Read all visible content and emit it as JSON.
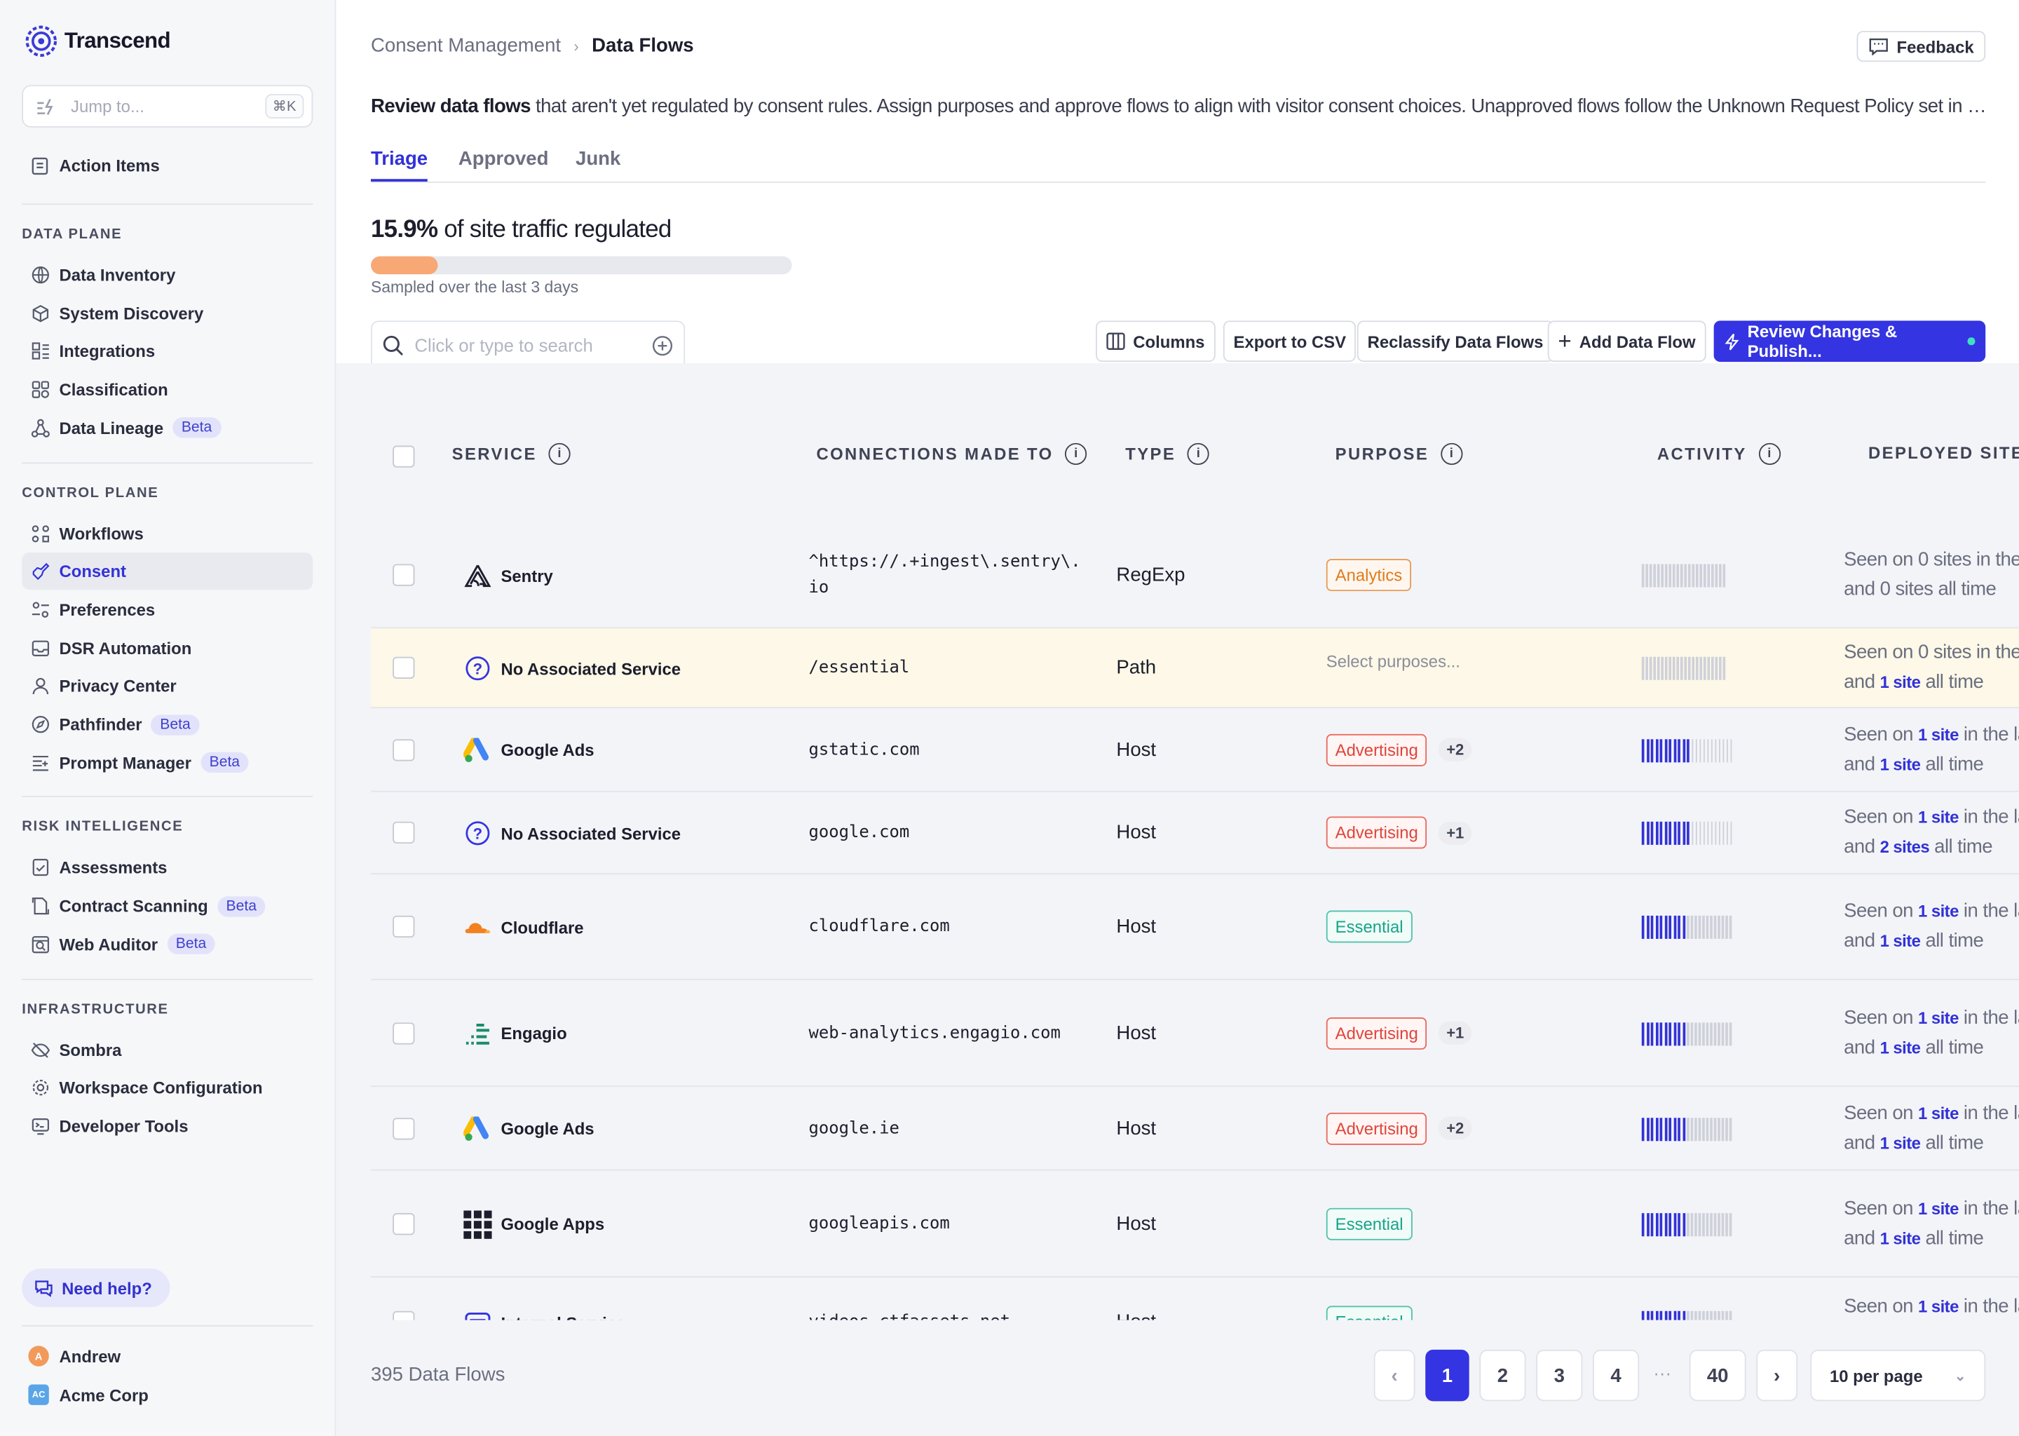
{
  "app": {
    "name": "Transcend"
  },
  "sidebar": {
    "jump_placeholder": "Jump to...",
    "jump_shortcut": "⌘K",
    "action_items": "Action Items",
    "sections": [
      {
        "title": "DATA PLANE",
        "items": [
          {
            "label": "Data Inventory",
            "icon": "globe-icon"
          },
          {
            "label": "System Discovery",
            "icon": "cube-icon"
          },
          {
            "label": "Integrations",
            "icon": "integrations-icon"
          },
          {
            "label": "Classification",
            "icon": "classification-icon"
          },
          {
            "label": "Data Lineage",
            "icon": "lineage-icon",
            "badge": "Beta"
          }
        ]
      },
      {
        "title": "CONTROL PLANE",
        "items": [
          {
            "label": "Workflows",
            "icon": "workflows-icon"
          },
          {
            "label": "Consent",
            "icon": "consent-icon",
            "active": true
          },
          {
            "label": "Preferences",
            "icon": "preferences-icon"
          },
          {
            "label": "DSR Automation",
            "icon": "inbox-icon"
          },
          {
            "label": "Privacy Center",
            "icon": "user-icon"
          },
          {
            "label": "Pathfinder",
            "icon": "compass-icon",
            "badge": "Beta"
          },
          {
            "label": "Prompt Manager",
            "icon": "prompt-icon",
            "badge": "Beta"
          }
        ]
      },
      {
        "title": "RISK INTELLIGENCE",
        "items": [
          {
            "label": "Assessments",
            "icon": "assessments-icon"
          },
          {
            "label": "Contract Scanning",
            "icon": "contract-icon",
            "badge": "Beta"
          },
          {
            "label": "Web Auditor",
            "icon": "web-auditor-icon",
            "badge": "Beta"
          }
        ]
      },
      {
        "title": "INFRASTRUCTURE",
        "items": [
          {
            "label": "Sombra",
            "icon": "eye-off-icon"
          },
          {
            "label": "Workspace Configuration",
            "icon": "gear-icon"
          },
          {
            "label": "Developer Tools",
            "icon": "terminal-icon"
          }
        ]
      }
    ],
    "help": "Need help?",
    "user_name": "Andrew",
    "user_initial": "A",
    "org_name": "Acme Corp",
    "org_initials": "AC"
  },
  "header": {
    "breadcrumb_parent": "Consent Management",
    "breadcrumb_current": "Data Flows",
    "feedback": "Feedback"
  },
  "description": {
    "bold": "Review data flows",
    "rest": " that aren't yet regulated by consent rules. Assign purposes and approve flows to align with visitor consent choices. Unapproved flows follow the Unknown Request Policy set in Dev..."
  },
  "tabs": [
    "Triage",
    "Approved",
    "Junk"
  ],
  "active_tab": "Triage",
  "kpi": {
    "value": "15.9%",
    "label": " of site traffic regulated",
    "progress": 0.159,
    "sampled": "Sampled over the last 3 days"
  },
  "toolbar": {
    "search_placeholder": "Click or type to search",
    "columns": "Columns",
    "export": "Export to CSV",
    "reclassify": "Reclassify Data Flows",
    "add": "Add Data Flow",
    "review": "Review Changes & Publish..."
  },
  "table": {
    "headers": {
      "service": "SERVICE",
      "connections": "CONNECTIONS MADE TO",
      "type": "TYPE",
      "purpose": "PURPOSE",
      "activity": "ACTIVITY",
      "deployed": "DEPLOYED SITES"
    },
    "rows": [
      {
        "service": "Sentry",
        "logo": "sentry-icon",
        "connection": "^https://.+ingest\\.sentry\\.io",
        "connection_wrap": [
          "^https://.+ingest\\.sentry\\.",
          "io"
        ],
        "type": "RegExp",
        "purpose": "Analytics",
        "purpose_kind": "an",
        "extra": "",
        "activity": 0,
        "dep_line1_pre": "Seen on 0 sites in the",
        "dep_line1_link": "",
        "dep_line1_post": "",
        "dep_line2_pre": "and 0 sites all time",
        "dep_line2_link": "",
        "dep_line2_post": ""
      },
      {
        "service": "No Associated Service",
        "logo": "question-icon",
        "connection": "/essential",
        "type": "Path",
        "purpose": "",
        "placeholder": "Select purposes...",
        "extra": "",
        "activity": 0,
        "highlight": true,
        "dep_line1_pre": "Seen on 0 sites in the",
        "dep_line1_link": "",
        "dep_line1_post": "",
        "dep_line2_pre": "and ",
        "dep_line2_link": "1 site",
        "dep_line2_post": " all time"
      },
      {
        "service": "Google Ads",
        "logo": "google-ads-icon",
        "connection": "gstatic.com",
        "type": "Host",
        "purpose": "Advertising",
        "purpose_kind": "ad",
        "extra": "+2",
        "activity": 11,
        "dep_line1_pre": "Seen on ",
        "dep_line1_link": "1 site",
        "dep_line1_post": " in the las",
        "dep_line2_pre": "and ",
        "dep_line2_link": "1 site",
        "dep_line2_post": " all time"
      },
      {
        "service": "No Associated Service",
        "logo": "question-icon",
        "connection": "google.com",
        "type": "Host",
        "purpose": "Advertising",
        "purpose_kind": "ad",
        "extra": "+1",
        "activity": 11,
        "dep_line1_pre": "Seen on ",
        "dep_line1_link": "1 site",
        "dep_line1_post": " in the las",
        "dep_line2_pre": "and ",
        "dep_line2_link": "2 sites",
        "dep_line2_post": " all time"
      },
      {
        "service": "Cloudflare",
        "logo": "cloudflare-icon",
        "connection": "cloudflare.com",
        "type": "Host",
        "purpose": "Essential",
        "purpose_kind": "es",
        "extra": "",
        "activity": 10,
        "dep_line1_pre": "Seen on ",
        "dep_line1_link": "1 site",
        "dep_line1_post": " in the las",
        "dep_line2_pre": "and ",
        "dep_line2_link": "1 site",
        "dep_line2_post": " all time"
      },
      {
        "service": "Engagio",
        "logo": "engagio-icon",
        "connection": "web-analytics.engagio.com",
        "type": "Host",
        "purpose": "Advertising",
        "purpose_kind": "ad",
        "extra": "+1",
        "activity": 10,
        "dep_line1_pre": "Seen on ",
        "dep_line1_link": "1 site",
        "dep_line1_post": " in the las",
        "dep_line2_pre": "and ",
        "dep_line2_link": "1 site",
        "dep_line2_post": " all time"
      },
      {
        "service": "Google Ads",
        "logo": "google-ads-icon",
        "connection": "google.ie",
        "type": "Host",
        "purpose": "Advertising",
        "purpose_kind": "ad",
        "extra": "+2",
        "activity": 10,
        "dep_line1_pre": "Seen on ",
        "dep_line1_link": "1 site",
        "dep_line1_post": " in the las",
        "dep_line2_pre": "and ",
        "dep_line2_link": "1 site",
        "dep_line2_post": " all time"
      },
      {
        "service": "Google Apps",
        "logo": "grid-icon",
        "connection": "googleapis.com",
        "type": "Host",
        "purpose": "Essential",
        "purpose_kind": "es",
        "extra": "",
        "activity": 10,
        "dep_line1_pre": "Seen on ",
        "dep_line1_link": "1 site",
        "dep_line1_post": " in the las",
        "dep_line2_pre": "and ",
        "dep_line2_link": "1 site",
        "dep_line2_post": " all time"
      },
      {
        "service": "Internal Service",
        "logo": "internal-service-icon",
        "connection": "videos.ctfassets.net",
        "type": "Host",
        "purpose": "Essential",
        "purpose_kind": "es",
        "extra": "",
        "activity": 10,
        "dep_line1_pre": "Seen on ",
        "dep_line1_link": "1 site",
        "dep_line1_post": " in the las",
        "dep_line2_pre": "",
        "dep_line2_link": "",
        "dep_line2_post": ""
      }
    ]
  },
  "footer": {
    "count": "395 Data Flows",
    "pages": [
      "1",
      "2",
      "3",
      "4",
      "40"
    ],
    "ellipsis": "···",
    "current_page": "1",
    "per_page": "10 per page"
  },
  "colors": {
    "accent": "#3434e2",
    "progress": "#f7a875",
    "highlight_row": "#fdf8e7"
  }
}
